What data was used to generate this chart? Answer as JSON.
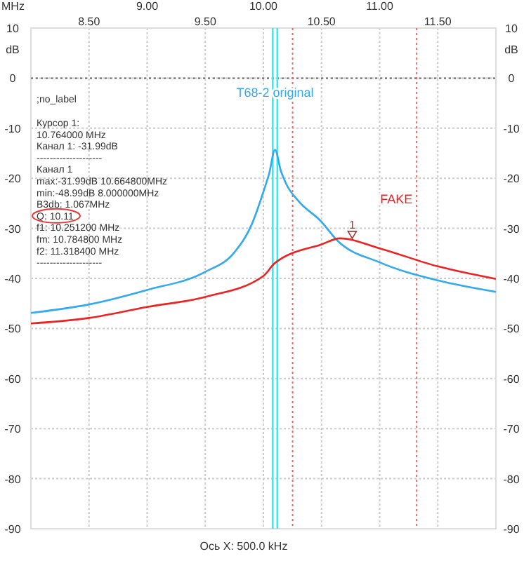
{
  "chart_data": {
    "type": "line",
    "xlabel": "Ось X: 500.0 kHz",
    "ylabel": "dB",
    "y2label": "dB",
    "xlim": [
      8,
      12
    ],
    "xticks": [
      {
        "value": 8,
        "label": null
      },
      {
        "value": 8.5,
        "label": "8.50"
      },
      {
        "value": 9.5,
        "label": "9.50"
      },
      {
        "value": 10.5,
        "label": "10.50"
      },
      {
        "value": 11.5,
        "label": "11.50"
      },
      {
        "value": 12,
        "label": null
      }
    ],
    "x2lim": [
      8,
      12
    ],
    "x2ticks": [
      {
        "value": 9,
        "label": "9.00"
      },
      {
        "value": 10,
        "label": "10.00"
      },
      {
        "value": 11,
        "label": "11.00"
      }
    ],
    "ylim": [
      -90,
      10
    ],
    "yticks": [
      -90,
      -80,
      -70,
      -60,
      -50,
      -40,
      -30,
      -20,
      -10,
      0,
      10
    ],
    "y2lim": [
      -90,
      10
    ],
    "y2ticks": [
      -90,
      -80,
      -70,
      -60,
      -50,
      -40,
      -30,
      -20,
      -10,
      0,
      10
    ],
    "grid": true,
    "line_style": "solid",
    "series": [
      {
        "name": "T68-2 original",
        "color": "#33aaee",
        "x": [
          8,
          8.5,
          9,
          9.5,
          9.75,
          9.9,
          10,
          10.05,
          10.1,
          10.15,
          10.2,
          10.3,
          10.5,
          10.63,
          11,
          11.5,
          12
        ],
        "values": [
          -46.9,
          -45.2,
          -42.3,
          -38.7,
          -34.8,
          -29.2,
          -22.7,
          -19,
          -14.3,
          -18.5,
          -21.3,
          -24.5,
          -28.7,
          -32.3,
          -36.8,
          -40.4,
          -42.7
        ]
      },
      {
        "name": "FAKE",
        "color": "#ee2222",
        "x": [
          8,
          8.5,
          9,
          9.5,
          10,
          10.1,
          10.5,
          10.66,
          11,
          11.5,
          12
        ],
        "values": [
          -49,
          -47.9,
          -45.7,
          -43.7,
          -39.5,
          -36.9,
          -33.2,
          -32,
          -34,
          -37.6,
          -40.1
        ]
      }
    ],
    "ref_lines": [
      {
        "axis": "y",
        "value": 0,
        "color": "#666666",
        "line_style": "dotted"
      },
      {
        "axis": "x",
        "value": 10.08,
        "color": "#33eeee",
        "line_style": "solid"
      },
      {
        "axis": "x",
        "value": 10.12,
        "color": "#33eeee",
        "line_style": "solid"
      },
      {
        "axis": "x",
        "value": 10.2512,
        "color": "#ee6666",
        "line_style": "dotted"
      },
      {
        "axis": "x",
        "value": 11.3184,
        "color": "#ee6666",
        "line_style": "dotted"
      }
    ],
    "annotations": [
      "MHz",
      ";no_label",
      "Курсор 1:",
      "10.764000 MHz",
      "Канал 1:  -31.99dB",
      "--------------------",
      "Канал 1",
      "max:-31.99dB 10.664800MHz",
      "min:-48.99dB 8.000000MHz",
      "B3db: 1.067MHz",
      "Q: 10.11",
      "f1: 10.251200 MHz",
      "fm: 10.784800 MHz",
      "f2: 11.318400 MHz",
      "--------------------",
      {
        "text": "1",
        "x": 10.764,
        "y": -32
      }
    ]
  }
}
